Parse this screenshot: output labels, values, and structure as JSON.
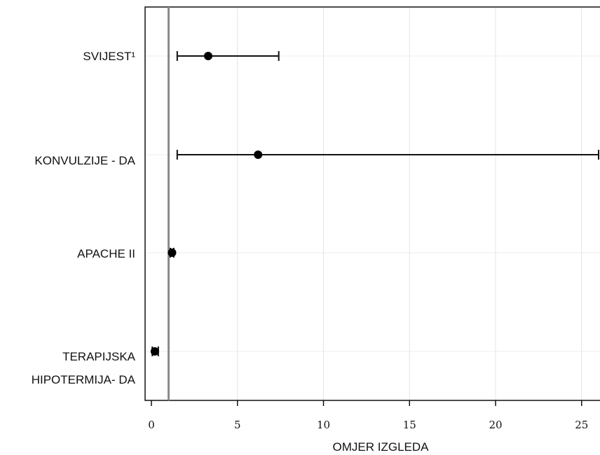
{
  "chart_data": {
    "type": "scatter",
    "subtype": "forest-plot",
    "xlabel": "OMJER IZGLEDA",
    "xlim": [
      -0.3,
      26.2
    ],
    "xticks": [
      0,
      5,
      10,
      15,
      20,
      25
    ],
    "reference_line": 1,
    "grid": true,
    "categories": [
      {
        "label_lines": [
          "SVIJEST¹"
        ],
        "estimate": 3.3,
        "ci_low": 1.5,
        "ci_high": 7.4
      },
      {
        "label_lines": [
          "KONVULZIJE - DA"
        ],
        "estimate": 6.2,
        "ci_low": 1.5,
        "ci_high": 26.2
      },
      {
        "label_lines": [
          "APACHE II"
        ],
        "estimate": 1.2,
        "ci_low": 1.1,
        "ci_high": 1.3
      },
      {
        "label_lines": [
          "TERAPIJSKA",
          "HIPOTERMIJA- DA"
        ],
        "estimate": 0.2,
        "ci_low": 0.05,
        "ci_high": 0.4
      }
    ]
  }
}
